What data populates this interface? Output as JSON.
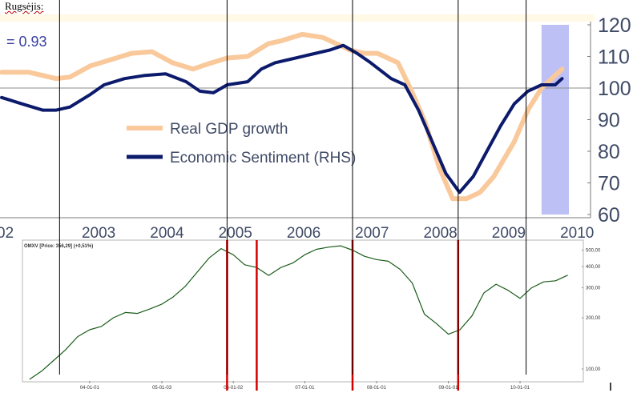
{
  "page_title": "Rugsėjis:",
  "chart_data": [
    {
      "type": "line",
      "title": "",
      "annotation": "= 0.93",
      "x_labels": [
        "02",
        "2003",
        "2004",
        "2005",
        "2006",
        "2007",
        "2008",
        "2009",
        "2010"
      ],
      "y_ticks_right": [
        60,
        70,
        80,
        90,
        100,
        110,
        120
      ],
      "ylim": [
        60,
        120
      ],
      "reference_line": 100,
      "shaded_region": "2009.9-2010.3",
      "grid": false,
      "legend_position": "center-left",
      "colors": {
        "gdp": "#f9c99b",
        "sentiment": "#0c1a6b",
        "shade": "#bcc0f5",
        "axis_text": "#3f4a66"
      },
      "series": [
        {
          "name": "Real GDP growth",
          "x": [
            2002.0,
            2002.4,
            2002.8,
            2003.0,
            2003.3,
            2003.6,
            2003.9,
            2004.2,
            2004.5,
            2004.8,
            2005.0,
            2005.3,
            2005.6,
            2005.9,
            2006.1,
            2006.4,
            2006.7,
            2006.9,
            2007.1,
            2007.3,
            2007.5,
            2007.8,
            2008.0,
            2008.2,
            2008.4,
            2008.6,
            2008.8,
            2009.0,
            2009.2,
            2009.5,
            2009.7,
            2009.9,
            2010.2
          ],
          "values": [
            105,
            105,
            103,
            103.5,
            107,
            109,
            111,
            111.5,
            108,
            106,
            107.5,
            109.5,
            110,
            114,
            115,
            117,
            116,
            114,
            112,
            111,
            111,
            108,
            99,
            89,
            75,
            65,
            65,
            67,
            72,
            83,
            93,
            100,
            106
          ]
        },
        {
          "name": "Economic Sentiment (RHS)",
          "x": [
            2002.0,
            2002.3,
            2002.6,
            2002.8,
            2003.0,
            2003.3,
            2003.5,
            2003.8,
            2004.1,
            2004.4,
            2004.7,
            2004.9,
            2005.1,
            2005.3,
            2005.6,
            2005.8,
            2006.0,
            2006.2,
            2006.5,
            2006.8,
            2007.0,
            2007.2,
            2007.4,
            2007.7,
            2007.9,
            2008.1,
            2008.3,
            2008.5,
            2008.7,
            2008.9,
            2009.1,
            2009.3,
            2009.5,
            2009.7,
            2009.9,
            2010.1,
            2010.2
          ],
          "values": [
            97,
            95,
            93,
            93,
            94,
            98,
            101,
            103,
            104,
            104.5,
            102,
            99,
            98.5,
            101,
            102,
            106,
            108,
            109,
            110.5,
            112,
            113.5,
            111,
            108,
            103,
            101,
            93,
            83,
            73,
            67,
            72,
            80,
            88,
            95,
            99,
            101,
            101,
            103
          ]
        }
      ]
    },
    {
      "type": "line",
      "title": "OMXV [Price: 356,29] (+0,51%)",
      "x_tick_labels": [
        "04-01-01",
        "05-01-03",
        "06-01-02",
        "07-01-01",
        "08-01-01",
        "09-01-01",
        "10-01-01"
      ],
      "y_tick_labels": [
        "500,00",
        "400,00",
        "300,00",
        "200,00",
        "100,00"
      ],
      "y_ticks": [
        500,
        400,
        300,
        200,
        100
      ],
      "y_scale": "log",
      "ylim": [
        85,
        560
      ],
      "x_range": [
        "2003-02-01",
        "2010-09-15"
      ],
      "grid": false,
      "colors": {
        "line": "#1a5c1a",
        "markers": "#d40000"
      },
      "series": [
        {
          "name": "OMXV",
          "x": [
            "2003-03-01",
            "2003-05-01",
            "2003-07-01",
            "2003-09-01",
            "2003-11-01",
            "2004-01-01",
            "2004-03-01",
            "2004-05-01",
            "2004-07-01",
            "2004-09-01",
            "2004-11-01",
            "2005-01-01",
            "2005-03-01",
            "2005-05-01",
            "2005-07-01",
            "2005-09-01",
            "2005-11-01",
            "2006-01-01",
            "2006-03-01",
            "2006-05-01",
            "2006-07-01",
            "2006-09-01",
            "2006-11-01",
            "2007-01-01",
            "2007-03-01",
            "2007-05-01",
            "2007-07-01",
            "2007-09-01",
            "2007-11-01",
            "2008-01-01",
            "2008-03-01",
            "2008-05-01",
            "2008-07-01",
            "2008-09-01",
            "2008-11-01",
            "2009-01-01",
            "2009-03-01",
            "2009-05-01",
            "2009-07-01",
            "2009-09-01",
            "2009-11-01",
            "2010-01-01",
            "2010-03-01",
            "2010-05-01",
            "2010-07-01",
            "2010-09-01"
          ],
          "values": [
            87,
            97,
            112,
            130,
            155,
            170,
            178,
            200,
            215,
            212,
            225,
            240,
            265,
            305,
            370,
            450,
            510,
            470,
            410,
            395,
            355,
            395,
            420,
            470,
            505,
            520,
            530,
            500,
            460,
            440,
            430,
            385,
            320,
            210,
            185,
            160,
            170,
            205,
            280,
            315,
            290,
            260,
            300,
            325,
            330,
            356
          ]
        }
      ],
      "vertical_markers": [
        "2005-12-01",
        "2006-05-01",
        "2007-09-01",
        "2009-02-20"
      ]
    }
  ],
  "guide_lines": [
    "2003-08-01",
    "2005-12-01",
    "2007-09-01",
    "2009-02-20",
    "2010-02-01"
  ]
}
